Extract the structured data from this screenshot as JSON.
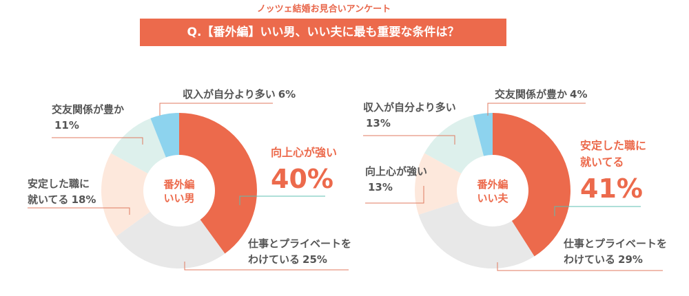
{
  "header": {
    "title": "ノッツェ結婚お見合いアンケート",
    "question": "Q.【番外編】いい男、いい夫に最も重要な条件は？"
  },
  "chart_data": [
    {
      "type": "donut",
      "title": "番外編",
      "subtitle": "いい男",
      "categories": [
        "向上心が強い",
        "仕事とプライベートを\nわけている",
        "安定した職に\n就いてる",
        "交友関係が豊か\n",
        "収入が自分より多い"
      ],
      "values": [
        40,
        25,
        18,
        11,
        6
      ],
      "value_labels": [
        "40%",
        "25%",
        "18%",
        "11%",
        "6%"
      ],
      "colors": [
        "#ec6a4c",
        "#e8e8e8",
        "#fde8dc",
        "#ddf0ec",
        "#8dd3ee"
      ]
    },
    {
      "type": "donut",
      "title": "番外編",
      "subtitle": "いい夫",
      "categories": [
        "安定した職に\n就いてる",
        "仕事とプライベートを\nわけている",
        "向上心が強い\n",
        "収入が自分より多い\n",
        "交友関係が豊か"
      ],
      "values": [
        41,
        29,
        13,
        13,
        4
      ],
      "value_labels": [
        "41%",
        "29%",
        "13%",
        "13%",
        "4%"
      ],
      "colors": [
        "#ec6a4c",
        "#e8e8e8",
        "#fde8dc",
        "#ddf0ec",
        "#8dd3ee"
      ]
    }
  ]
}
